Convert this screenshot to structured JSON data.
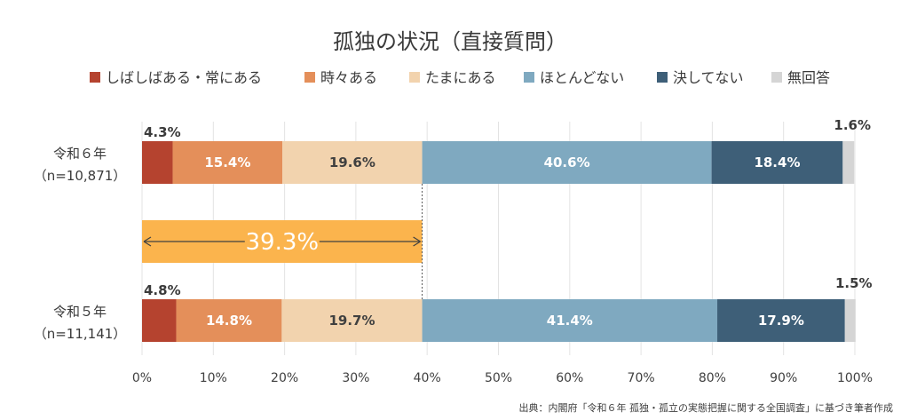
{
  "chart_data": {
    "type": "bar",
    "orientation": "horizontal",
    "stacked": "percent",
    "title": "孤独の状況（直接質問）",
    "categories": [
      "令和６年",
      "令和５年"
    ],
    "category_sublabels": [
      "（n=10,871）",
      "（n=11,141）"
    ],
    "series": [
      {
        "name": "しばしばある・常にある",
        "values": [
          4.3,
          4.8
        ],
        "labels": [
          "4.3%",
          "4.8%"
        ],
        "color": "#b5432f",
        "label_color": "#3a3a3a"
      },
      {
        "name": "時々ある",
        "values": [
          15.4,
          14.8
        ],
        "labels": [
          "15.4%",
          "14.8%"
        ],
        "color": "#e48f5a",
        "label_color": "#ffffff"
      },
      {
        "name": "たまにある",
        "values": [
          19.6,
          19.7
        ],
        "labels": [
          "19.6%",
          "19.7%"
        ],
        "color": "#f2d3ae",
        "label_color": "#404040"
      },
      {
        "name": "ほとんどない",
        "values": [
          40.6,
          41.4
        ],
        "labels": [
          "40.6%",
          "41.4%"
        ],
        "color": "#7fa9c0",
        "label_color": "#ffffff"
      },
      {
        "name": "決してない",
        "values": [
          18.4,
          17.9
        ],
        "labels": [
          "18.4%",
          "17.9%"
        ],
        "color": "#3e5f78",
        "label_color": "#ffffff"
      },
      {
        "name": "無回答",
        "values": [
          1.6,
          1.5
        ],
        "labels": [
          "1.6%",
          "1.5%"
        ],
        "color": "#d5d5d5",
        "label_color": "#3a3a3a"
      }
    ],
    "xlim": [
      0,
      100
    ],
    "x_ticks": [
      "0%",
      "10%",
      "20%",
      "30%",
      "40%",
      "50%",
      "60%",
      "70%",
      "80%",
      "90%",
      "100%"
    ],
    "legend_position": "top",
    "grid": true,
    "highlight": {
      "value": 39.3,
      "label": "39.3%",
      "color": "#fbb44d"
    },
    "source": "出典：内閣府「令和６年 孤独・孤立の実態把握に関する全国調査」に基づき筆者作成"
  }
}
